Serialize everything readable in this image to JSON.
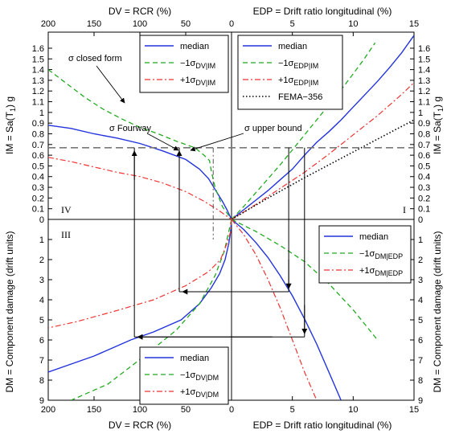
{
  "chart_data": {
    "type": "line",
    "quadrant_labels": [
      "IV",
      "I",
      "III"
    ],
    "axes": {
      "top_left_xlabel": "DV = RCR (%)",
      "top_right_xlabel": "EDP = Drift ratio longitudinal (%)",
      "bottom_left_xlabel": "DV = RCR (%)",
      "bottom_right_xlabel": "EDP = Drift ratio longitudinal (%)",
      "left_upper_ylabel": "IM = Sa(T",
      "left_upper_ylabel_sub": "1",
      "left_upper_ylabel_end": ") g",
      "right_upper_ylabel": "IM = Sa(T",
      "right_upper_ylabel_sub": "1",
      "right_upper_ylabel_end": ") g",
      "left_lower_ylabel": "DM = Component damage (drift units)",
      "right_lower_ylabel": "DM = Component damage (drift units)",
      "dv_lim": [
        200,
        0
      ],
      "edp_lim": [
        0,
        15
      ],
      "im_lim": [
        0,
        1.75
      ],
      "dm_lim": [
        0,
        9
      ],
      "dv_ticks": [
        "200",
        "150",
        "100",
        "50",
        "0"
      ],
      "edp_ticks": [
        "0",
        "5",
        "10",
        "15"
      ],
      "im_ticks": [
        "0",
        "0.1",
        "0.2",
        "0.3",
        "0.4",
        "0.5",
        "0.6",
        "0.7",
        "0.8",
        "0.9",
        "1",
        "1.1",
        "1.2",
        "1.3",
        "1.4",
        "1.5",
        "1.6"
      ],
      "dm_ticks": [
        "1",
        "2",
        "3",
        "4",
        "5",
        "6",
        "7",
        "8",
        "9"
      ]
    },
    "legends": {
      "q4": {
        "items": [
          {
            "label": "median",
            "sub": "",
            "style": "solid-blue"
          },
          {
            "label": "−1σ",
            "sub": "DV|IM",
            "style": "dash-green"
          },
          {
            "label": "+1σ",
            "sub": "DV|IM",
            "style": "dashdot-red"
          }
        ]
      },
      "q1": {
        "items": [
          {
            "label": "median",
            "sub": "",
            "style": "solid-blue"
          },
          {
            "label": "−1σ",
            "sub": "EDP|IM",
            "style": "dash-green"
          },
          {
            "label": "+1σ",
            "sub": "EDP|IM",
            "style": "dashdot-red"
          },
          {
            "label": "FEMA−356",
            "sub": "",
            "style": "dotted-black"
          }
        ]
      },
      "q2": {
        "items": [
          {
            "label": "median",
            "sub": "",
            "style": "solid-blue"
          },
          {
            "label": "−1σ",
            "sub": "DM|EDP",
            "style": "dash-green"
          },
          {
            "label": "+1σ",
            "sub": "DM|EDP",
            "style": "dashdot-red"
          }
        ]
      },
      "q3": {
        "items": [
          {
            "label": "median",
            "sub": "",
            "style": "solid-blue"
          },
          {
            "label": "−1σ",
            "sub": "DV|DM",
            "style": "dash-green"
          },
          {
            "label": "+1σ",
            "sub": "DV|DM",
            "style": "dashdot-red"
          }
        ]
      }
    },
    "annotations": {
      "closed_form": "σ closed form",
      "fourway": "σ Fourway",
      "upper_bound": "σ upper bound"
    },
    "reference_im": 0.67,
    "series": {
      "q1": {
        "median": [
          [
            0,
            0
          ],
          [
            1,
            0.09
          ],
          [
            2,
            0.18
          ],
          [
            3,
            0.27
          ],
          [
            4,
            0.37
          ],
          [
            5,
            0.47
          ],
          [
            6,
            0.6
          ],
          [
            7,
            0.72
          ],
          [
            8,
            0.82
          ],
          [
            9,
            0.93
          ],
          [
            10,
            1.05
          ],
          [
            11,
            1.17
          ],
          [
            12,
            1.29
          ],
          [
            13,
            1.42
          ],
          [
            14,
            1.56
          ],
          [
            15,
            1.72
          ]
        ],
        "minus1": [
          [
            0,
            0
          ],
          [
            1,
            0.12
          ],
          [
            2,
            0.25
          ],
          [
            3,
            0.38
          ],
          [
            4,
            0.51
          ],
          [
            5,
            0.65
          ],
          [
            6,
            0.79
          ],
          [
            7,
            0.93
          ],
          [
            8,
            1.07
          ],
          [
            9,
            1.21
          ],
          [
            10,
            1.36
          ],
          [
            10.9,
            1.5
          ],
          [
            11.8,
            1.65
          ]
        ],
        "plus1": [
          [
            0,
            0
          ],
          [
            1,
            0.07
          ],
          [
            2,
            0.14
          ],
          [
            4,
            0.29
          ],
          [
            6,
            0.44
          ],
          [
            8,
            0.61
          ],
          [
            10,
            0.79
          ],
          [
            12,
            0.97
          ],
          [
            14,
            1.17
          ],
          [
            15,
            1.28
          ]
        ],
        "fema": [
          [
            0,
            0
          ],
          [
            3,
            0.2
          ],
          [
            6,
            0.39
          ],
          [
            9,
            0.57
          ],
          [
            12,
            0.75
          ],
          [
            15,
            0.93
          ]
        ]
      },
      "q4": {
        "median": [
          [
            200,
            0.88
          ],
          [
            175,
            0.85
          ],
          [
            150,
            0.8
          ],
          [
            125,
            0.76
          ],
          [
            100,
            0.71
          ],
          [
            75,
            0.64
          ],
          [
            50,
            0.56
          ],
          [
            35,
            0.47
          ],
          [
            25,
            0.38
          ],
          [
            18,
            0.28
          ],
          [
            10,
            0.17
          ],
          [
            5,
            0.09
          ],
          [
            0,
            0
          ]
        ],
        "minus1": [
          [
            200,
            1.4
          ],
          [
            180,
            1.27
          ],
          [
            160,
            1.14
          ],
          [
            140,
            1.03
          ],
          [
            120,
            0.94
          ],
          [
            100,
            0.86
          ],
          [
            80,
            0.8
          ],
          [
            60,
            0.73
          ],
          [
            40,
            0.67
          ],
          [
            30,
            0.6
          ],
          [
            24,
            0.55
          ],
          [
            22,
            0.45
          ],
          [
            18,
            0.3
          ],
          [
            10,
            0.12
          ],
          [
            0,
            0
          ]
        ],
        "plus1": [
          [
            200,
            0.58
          ],
          [
            175,
            0.54
          ],
          [
            150,
            0.49
          ],
          [
            125,
            0.44
          ],
          [
            100,
            0.4
          ],
          [
            75,
            0.34
          ],
          [
            50,
            0.26
          ],
          [
            30,
            0.17
          ],
          [
            15,
            0.09
          ],
          [
            0,
            0
          ]
        ]
      },
      "q2": {
        "median": [
          [
            0,
            0
          ],
          [
            1,
            0.5
          ],
          [
            2,
            1.15
          ],
          [
            3,
            1.9
          ],
          [
            4,
            2.8
          ],
          [
            5,
            3.8
          ],
          [
            6,
            4.95
          ],
          [
            7,
            6.2
          ],
          [
            8,
            7.6
          ],
          [
            9,
            9
          ]
        ],
        "minus1": [
          [
            0,
            0
          ],
          [
            2,
            0.6
          ],
          [
            4,
            1.3
          ],
          [
            6,
            2.1
          ],
          [
            8,
            3.2
          ],
          [
            10,
            4.5
          ],
          [
            12,
            6
          ]
        ],
        "plus1": [
          [
            0,
            0
          ],
          [
            1,
            0.75
          ],
          [
            2,
            1.75
          ],
          [
            3,
            3
          ],
          [
            4,
            4.4
          ],
          [
            5,
            6
          ],
          [
            6,
            7.6
          ],
          [
            7,
            9
          ]
        ]
      },
      "q3": {
        "median": [
          [
            0,
            0
          ],
          [
            1,
            0.6
          ],
          [
            3,
            1.2
          ],
          [
            7,
            2
          ],
          [
            13,
            2.7
          ],
          [
            22,
            3.4
          ],
          [
            35,
            4.2
          ],
          [
            55,
            5
          ],
          [
            85,
            5.6
          ],
          [
            110,
            6
          ],
          [
            150,
            6.8
          ],
          [
            200,
            7.6
          ]
        ],
        "minus1": [
          [
            0,
            0
          ],
          [
            3,
            0.6
          ],
          [
            8,
            1.6
          ],
          [
            18,
            2.8
          ],
          [
            35,
            4.2
          ],
          [
            60,
            5.5
          ],
          [
            95,
            6.8
          ],
          [
            135,
            8.2
          ],
          [
            175,
            9
          ]
        ],
        "plus1": [
          [
            0,
            0
          ],
          [
            1,
            0.6
          ],
          [
            5,
            1.2
          ],
          [
            12,
            2
          ],
          [
            25,
            2.6
          ],
          [
            50,
            3.3
          ],
          [
            85,
            4
          ],
          [
            130,
            4.6
          ],
          [
            170,
            5.1
          ],
          [
            200,
            5.4
          ]
        ]
      }
    },
    "path_arrows": [
      {
        "name": "fourway-path",
        "points": [
          [
            "dv",
            57,
            "im",
            0.67
          ],
          [
            "dv",
            57,
            "dm",
            3.6
          ],
          [
            "edp",
            4.7,
            "dm",
            3.6
          ],
          [
            "edp",
            4.7,
            "im",
            0.67
          ]
        ]
      },
      {
        "name": "upper-bound-path",
        "points": [
          [
            "dv",
            106,
            "im",
            0.67
          ],
          [
            "dv",
            106,
            "dm",
            5.85
          ],
          [
            "edp",
            6,
            "dm",
            5.85
          ],
          [
            "edp",
            6,
            "im",
            0.67
          ]
        ]
      }
    ]
  }
}
